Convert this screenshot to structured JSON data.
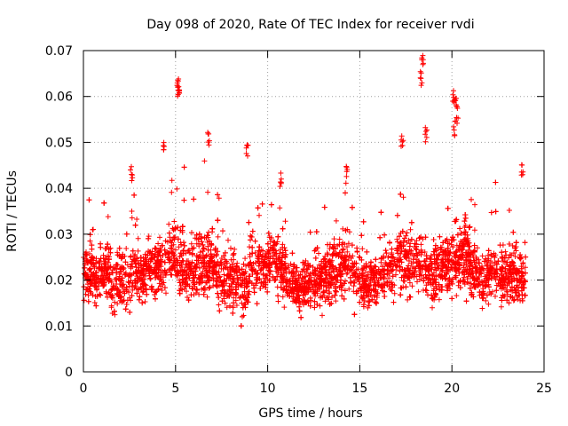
{
  "chart_data": {
    "type": "scatter",
    "title": "Day 098 of 2020, Rate Of TEC Index for receiver rvdi",
    "xlabel": "GPS time / hours",
    "ylabel": "ROTI / TECUs",
    "xlim": [
      0,
      25
    ],
    "ylim": [
      0,
      0.07
    ],
    "x_ticks": [
      "0",
      "5",
      "10",
      "15",
      "20",
      "25"
    ],
    "y_ticks": [
      "0",
      "0.01",
      "0.02",
      "0.03",
      "0.04",
      "0.05",
      "0.06",
      "0.07"
    ],
    "grid": true,
    "marker": "+",
    "color": "#ff0000",
    "segments": [
      [
        0.0,
        0.022,
        0.006
      ],
      [
        0.5,
        0.021,
        0.006
      ],
      [
        1.0,
        0.022,
        0.006
      ],
      [
        1.5,
        0.019,
        0.006
      ],
      [
        2.0,
        0.02,
        0.006
      ],
      [
        2.5,
        0.021,
        0.006
      ],
      [
        3.0,
        0.021,
        0.006
      ],
      [
        3.5,
        0.023,
        0.006
      ],
      [
        4.0,
        0.023,
        0.006
      ],
      [
        4.5,
        0.026,
        0.006
      ],
      [
        5.0,
        0.024,
        0.007
      ],
      [
        5.5,
        0.022,
        0.006
      ],
      [
        6.0,
        0.023,
        0.006
      ],
      [
        6.5,
        0.024,
        0.007
      ],
      [
        7.0,
        0.021,
        0.006
      ],
      [
        7.5,
        0.02,
        0.006
      ],
      [
        8.0,
        0.019,
        0.006
      ],
      [
        8.5,
        0.019,
        0.006
      ],
      [
        9.0,
        0.022,
        0.006
      ],
      [
        9.5,
        0.023,
        0.006
      ],
      [
        10.0,
        0.025,
        0.006
      ],
      [
        10.5,
        0.022,
        0.006
      ],
      [
        11.0,
        0.019,
        0.005
      ],
      [
        11.5,
        0.018,
        0.005
      ],
      [
        12.0,
        0.019,
        0.005
      ],
      [
        12.5,
        0.02,
        0.005
      ],
      [
        13.0,
        0.021,
        0.006
      ],
      [
        13.5,
        0.023,
        0.006
      ],
      [
        14.0,
        0.024,
        0.006
      ],
      [
        14.5,
        0.022,
        0.006
      ],
      [
        15.0,
        0.019,
        0.005
      ],
      [
        15.5,
        0.02,
        0.005
      ],
      [
        16.0,
        0.021,
        0.005
      ],
      [
        16.5,
        0.022,
        0.006
      ],
      [
        17.0,
        0.025,
        0.006
      ],
      [
        17.5,
        0.023,
        0.006
      ],
      [
        18.0,
        0.024,
        0.006
      ],
      [
        18.5,
        0.022,
        0.006
      ],
      [
        19.0,
        0.022,
        0.006
      ],
      [
        19.5,
        0.023,
        0.006
      ],
      [
        20.0,
        0.024,
        0.007
      ],
      [
        20.5,
        0.025,
        0.007
      ],
      [
        21.0,
        0.022,
        0.006
      ],
      [
        21.5,
        0.021,
        0.006
      ],
      [
        22.0,
        0.022,
        0.006
      ],
      [
        22.5,
        0.021,
        0.006
      ],
      [
        23.0,
        0.021,
        0.006
      ],
      [
        23.5,
        0.02,
        0.006
      ]
    ],
    "spikes": [
      [
        5.1,
        0.065
      ],
      [
        5.2,
        0.062
      ],
      [
        5.15,
        0.064
      ],
      [
        18.4,
        0.069
      ],
      [
        18.35,
        0.066
      ],
      [
        20.1,
        0.062
      ],
      [
        20.2,
        0.06
      ],
      [
        20.15,
        0.055
      ],
      [
        6.8,
        0.053
      ],
      [
        8.9,
        0.051
      ],
      [
        4.4,
        0.052
      ],
      [
        18.6,
        0.054
      ],
      [
        17.3,
        0.052
      ],
      [
        20.3,
        0.058
      ],
      [
        23.8,
        0.046
      ],
      [
        2.6,
        0.045
      ],
      [
        14.3,
        0.045
      ],
      [
        10.7,
        0.044
      ]
    ]
  }
}
